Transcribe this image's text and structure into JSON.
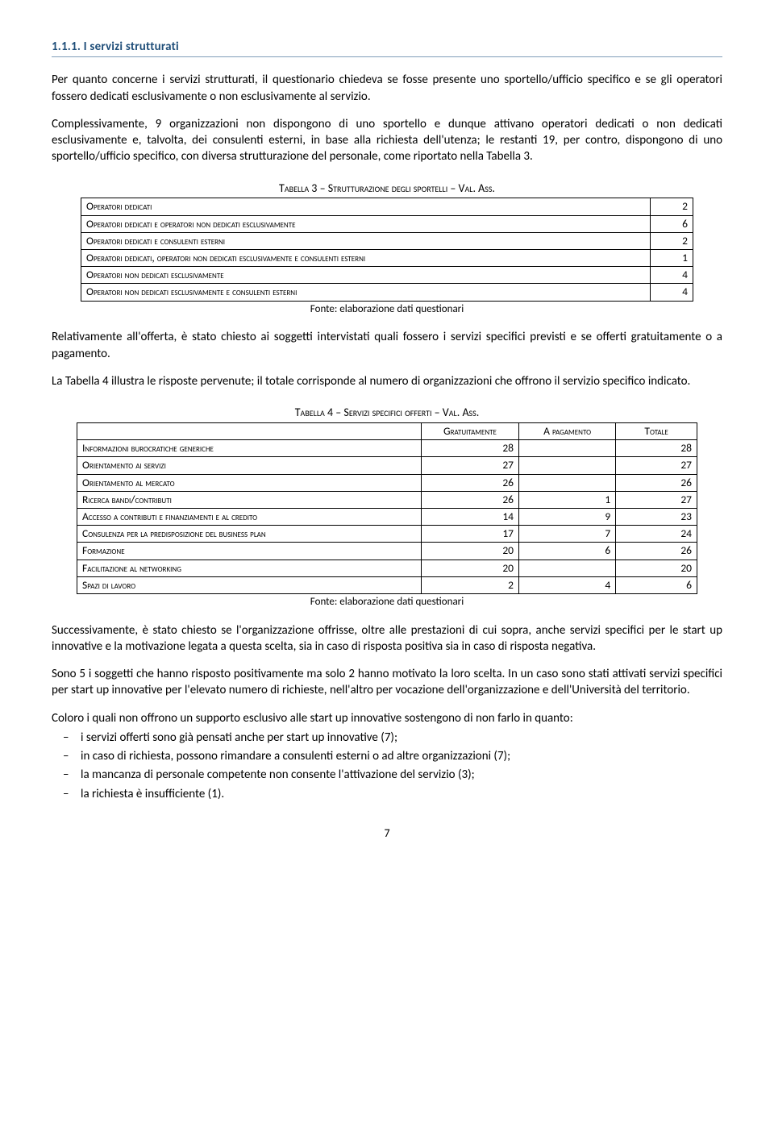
{
  "heading": "1.1.1.  I servizi strutturati",
  "para1": "Per quanto concerne i servizi strutturati, il questionario chiedeva se fosse presente uno sportello/ufficio specifico e se gli operatori fossero dedicati esclusivamente o non esclusivamente al servizio.",
  "para2": "Complessivamente, 9 organizzazioni non dispongono di uno sportello e dunque attivano operatori dedicati o non dedicati esclusivamente e, talvolta, dei consulenti esterni, in base alla richiesta dell'utenza; le restanti 19, per contro, dispongono di uno sportello/ufficio specifico, con diversa strutturazione del personale, come riportato nella Tabella 3.",
  "table3": {
    "caption": "Tabella 3 – Strutturazione degli sportelli – Val. Ass.",
    "rows": [
      {
        "label": "Operatori dedicati",
        "val": "2"
      },
      {
        "label": "Operatori dedicati e operatori non dedicati esclusivamente",
        "val": "6"
      },
      {
        "label": "Operatori dedicati e consulenti esterni",
        "val": "2"
      },
      {
        "label": "Operatori dedicati, operatori non dedicati esclusivamente e consulenti esterni",
        "val": "1"
      },
      {
        "label": "Operatori non dedicati esclusivamente",
        "val": "4"
      },
      {
        "label": "Operatori non dedicati esclusivamente e consulenti esterni",
        "val": "4"
      }
    ],
    "source": "Fonte: elaborazione dati questionari"
  },
  "para3": "Relativamente all'offerta, è stato chiesto ai soggetti intervistati quali fossero i servizi specifici previsti e se offerti gratuitamente o a pagamento.",
  "para4": "La Tabella 4 illustra le risposte pervenute; il totale corrisponde al numero di organizzazioni che offrono il servizio specifico indicato.",
  "table4": {
    "caption": "Tabella 4  – Servizi specifici offerti – Val. Ass.",
    "headers": {
      "c1": "",
      "c2": "Gratuitamente",
      "c3": "A pagamento",
      "c4": "Totale"
    },
    "rows": [
      {
        "label": "Informazioni burocratiche generiche",
        "g": "28",
        "p": "",
        "t": "28"
      },
      {
        "label": "Orientamento ai servizi",
        "g": "27",
        "p": "",
        "t": "27"
      },
      {
        "label": "Orientamento al mercato",
        "g": "26",
        "p": "",
        "t": "26"
      },
      {
        "label": "Ricerca bandi/contributi",
        "g": "26",
        "p": "1",
        "t": "27"
      },
      {
        "label": "Accesso a contributi e finanziamenti e al credito",
        "g": "14",
        "p": "9",
        "t": "23"
      },
      {
        "label": "Consulenza per la predisposizione del business plan",
        "g": "17",
        "p": "7",
        "t": "24"
      },
      {
        "label": "Formazione",
        "g": "20",
        "p": "6",
        "t": "26"
      },
      {
        "label": "Facilitazione al networking",
        "g": "20",
        "p": "",
        "t": "20"
      },
      {
        "label": "Spazi di lavoro",
        "g": "2",
        "p": "4",
        "t": "6"
      }
    ],
    "source": "Fonte: elaborazione dati questionari"
  },
  "para5": "Successivamente, è stato chiesto se l'organizzazione offrisse, oltre alle prestazioni di cui sopra, anche servizi specifici per le start up innovative e la motivazione legata a questa scelta, sia in caso di risposta positiva sia in caso di risposta negativa.",
  "para6": "Sono 5 i soggetti che hanno risposto positivamente ma solo 2 hanno motivato la loro scelta. In un caso sono stati attivati servizi specifici per start up innovative per l'elevato numero di richieste, nell'altro per vocazione dell'organizzazione e dell'Università del territorio.",
  "para7": "Coloro i quali non offrono un supporto esclusivo alle start up innovative sostengono di non farlo in quanto:",
  "bullets": [
    "i servizi offerti sono già pensati anche per start up innovative (7);",
    "in caso di richiesta, possono rimandare a consulenti esterni o ad altre organizzazioni (7);",
    "la mancanza di personale competente non consente l'attivazione del servizio (3);",
    "la richiesta è insufficiente (1)."
  ],
  "pageNumber": "7",
  "colors": {
    "heading": "#1f4e79",
    "rule": "#7f9db9",
    "text": "#000000",
    "background": "#ffffff"
  },
  "typography": {
    "body_font": "Calibri",
    "body_size_pt": 11,
    "heading_size_pt": 11,
    "caption_size_pt": 10,
    "table_size_pt": 10
  }
}
